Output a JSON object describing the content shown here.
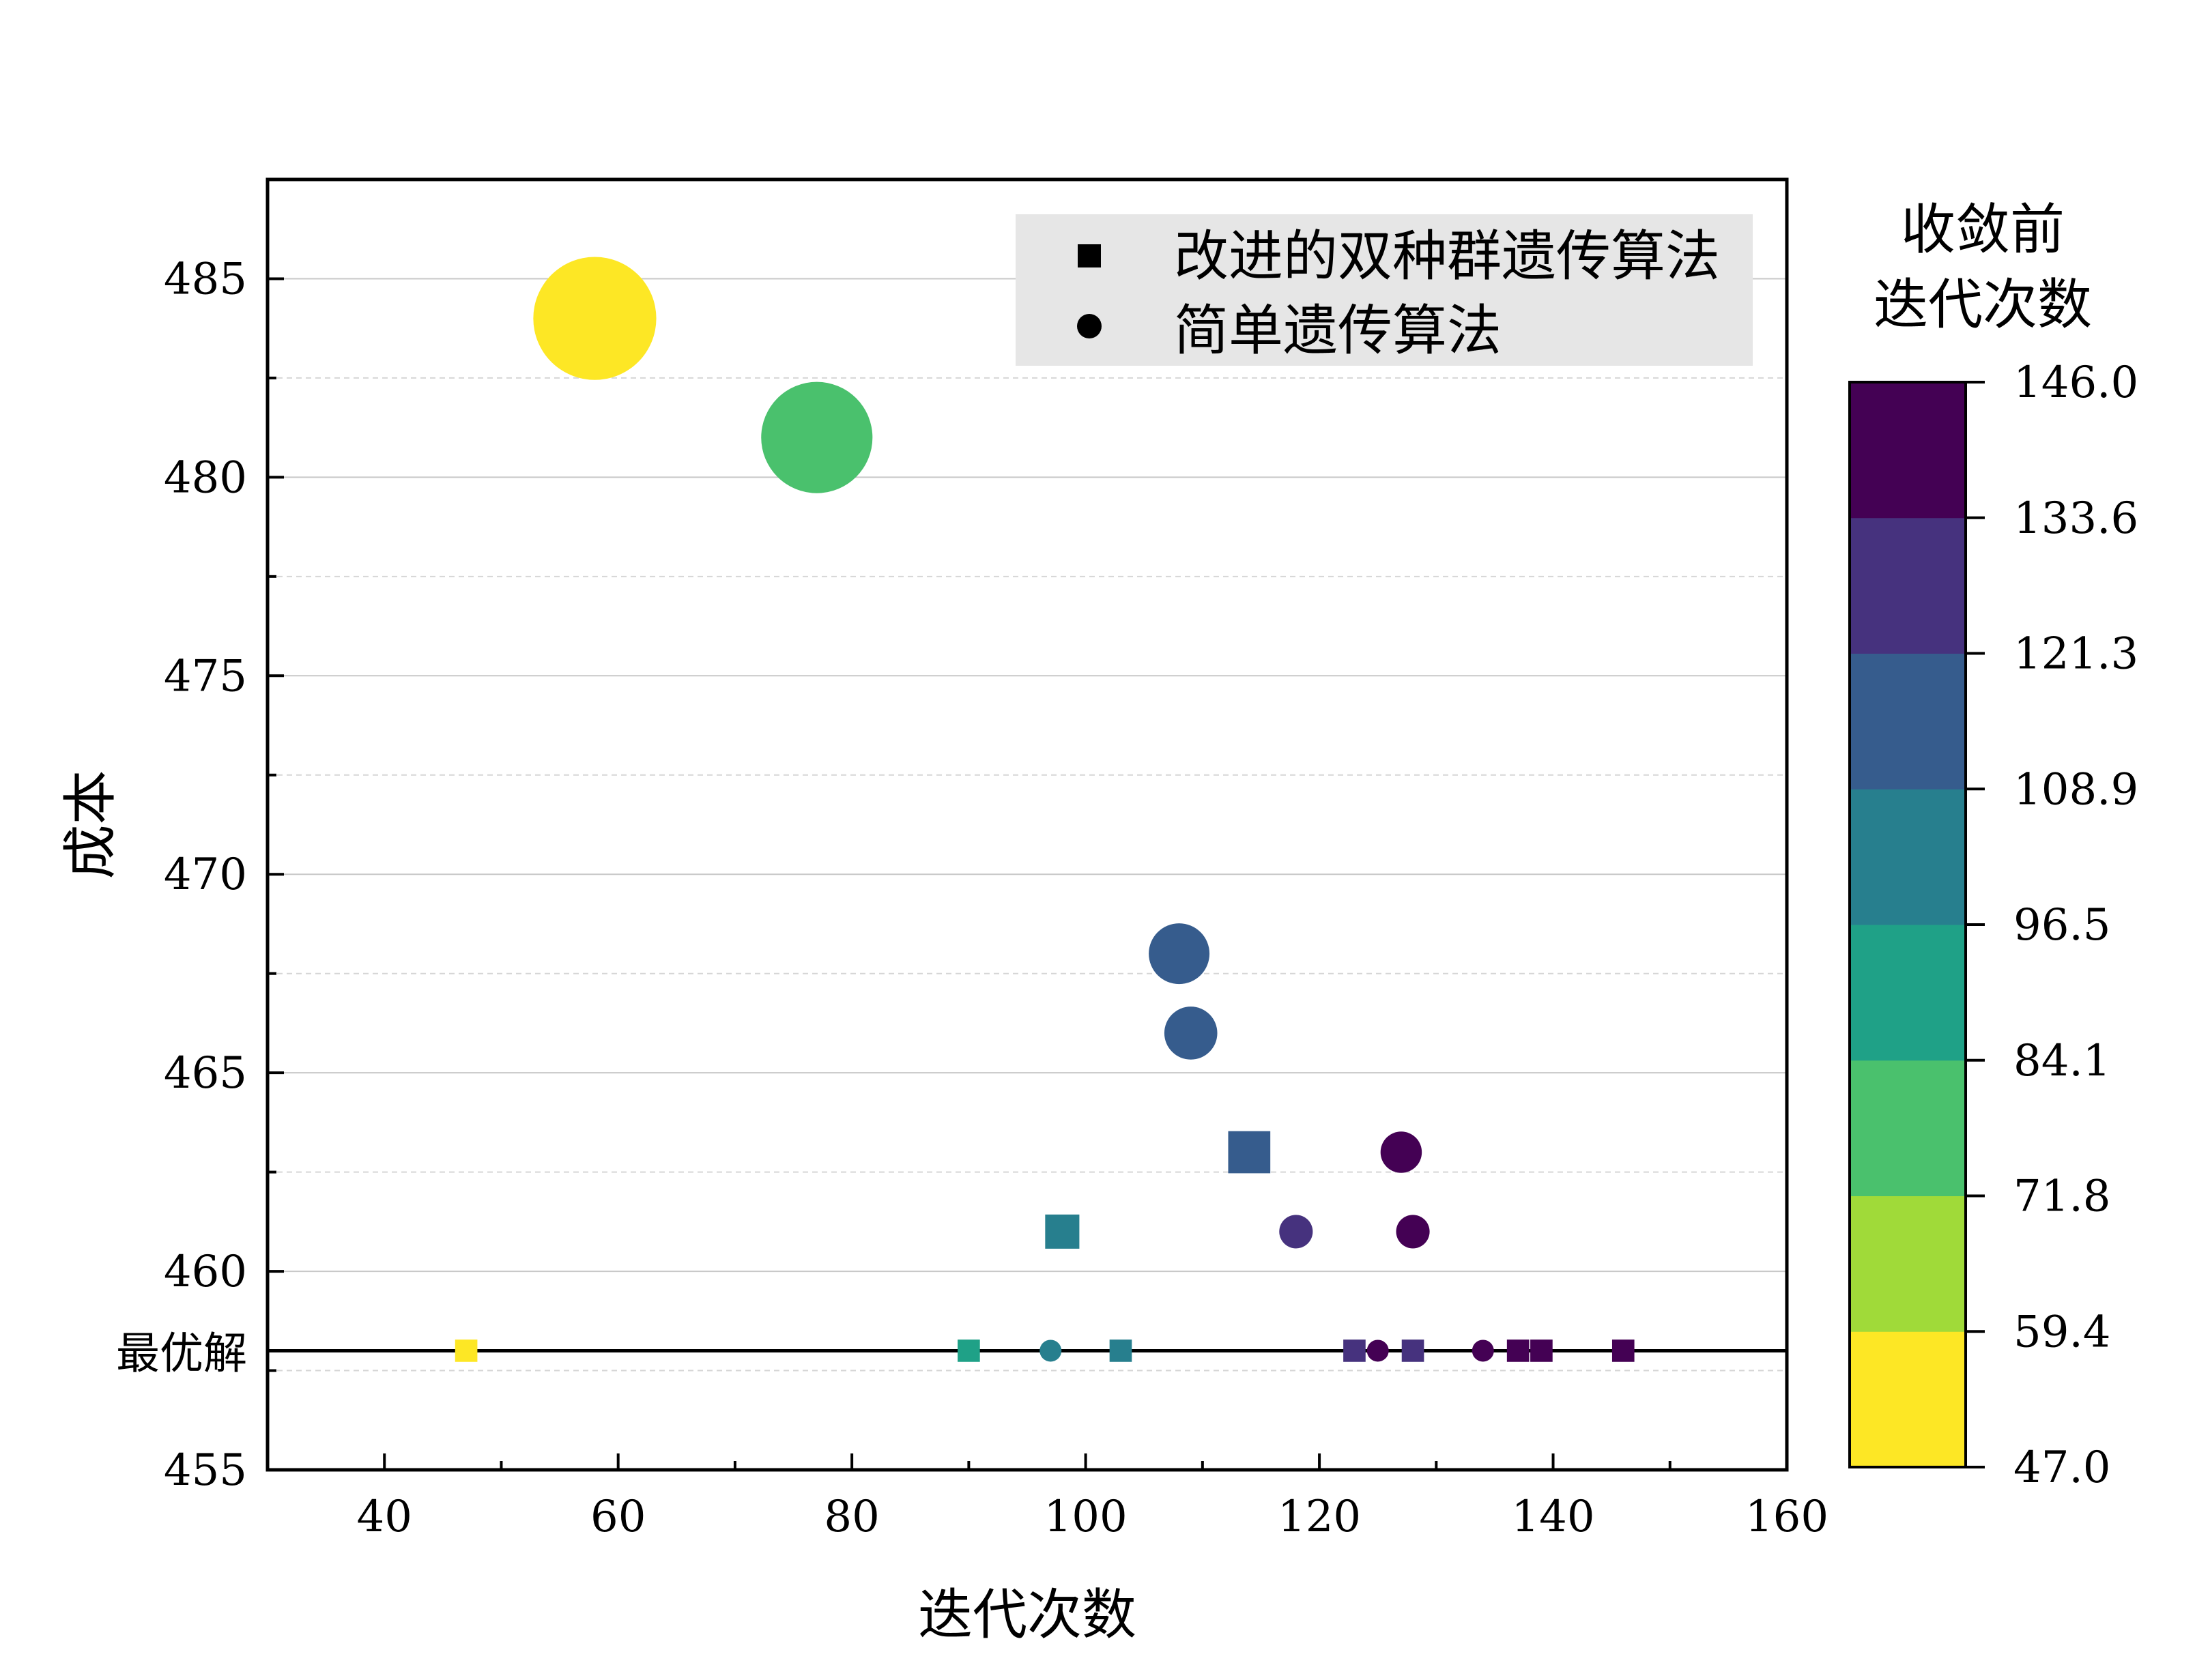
{
  "chart_data": {
    "type": "scatter",
    "xlabel": "迭代次数",
    "ylabel": "成本",
    "xlim": [
      30,
      160
    ],
    "ylim": [
      455,
      487.5
    ],
    "xticks": [
      40,
      60,
      80,
      100,
      120,
      140,
      160
    ],
    "yticks": [
      455,
      460,
      465,
      470,
      475,
      480,
      485
    ],
    "grid": true,
    "reference_line": {
      "y": 458,
      "label": "最优解"
    },
    "legend": {
      "placement": "top-right",
      "entries": [
        {
          "name": "改进的双种群遗传算法",
          "marker": "square"
        },
        {
          "name": "简单遗传算法",
          "marker": "circle"
        }
      ]
    },
    "series": [
      {
        "name": "改进的双种群遗传算法",
        "marker": "square",
        "points": [
          {
            "x": 47,
            "y": 458,
            "c": 47
          },
          {
            "x": 90,
            "y": 458,
            "c": 90
          },
          {
            "x": 98,
            "y": 461,
            "c": 100
          },
          {
            "x": 103,
            "y": 458,
            "c": 103
          },
          {
            "x": 114,
            "y": 463,
            "c": 114
          },
          {
            "x": 123,
            "y": 458,
            "c": 123
          },
          {
            "x": 128,
            "y": 458,
            "c": 128
          },
          {
            "x": 137,
            "y": 458,
            "c": 137
          },
          {
            "x": 139,
            "y": 458,
            "c": 139
          },
          {
            "x": 146,
            "y": 458,
            "c": 146
          }
        ]
      },
      {
        "name": "简单遗传算法",
        "marker": "circle",
        "points": [
          {
            "x": 58,
            "y": 484,
            "c": 58
          },
          {
            "x": 77,
            "y": 481,
            "c": 77
          },
          {
            "x": 97,
            "y": 458,
            "c": 100
          },
          {
            "x": 108,
            "y": 468,
            "c": 112
          },
          {
            "x": 109,
            "y": 466,
            "c": 112
          },
          {
            "x": 118,
            "y": 461,
            "c": 127
          },
          {
            "x": 125,
            "y": 458,
            "c": 140
          },
          {
            "x": 127,
            "y": 463,
            "c": 140
          },
          {
            "x": 128,
            "y": 461,
            "c": 140
          },
          {
            "x": 134,
            "y": 458,
            "c": 140
          }
        ]
      }
    ],
    "colorbar": {
      "title_lines": [
        "收敛前",
        "迭代次数"
      ],
      "min": 47.0,
      "max": 146.0,
      "tick_labels": [
        "47.0",
        "59.4",
        "71.8",
        "84.1",
        "96.5",
        "108.9",
        "121.3",
        "133.6",
        "146.0"
      ],
      "band_colors": [
        "#fde725",
        "#a0da39",
        "#4ac16d",
        "#1fa187",
        "#277f8e",
        "#365c8d",
        "#46327e",
        "#440154"
      ]
    }
  }
}
